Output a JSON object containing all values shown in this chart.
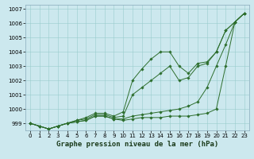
{
  "title": "Graphe pression niveau de la mer (hPa)",
  "bg_color": "#cce8ee",
  "grid_color": "#99cccc",
  "line_color": "#2d6e2d",
  "marker_color": "#2d6e2d",
  "x": [
    0,
    1,
    2,
    3,
    4,
    5,
    6,
    7,
    8,
    9,
    10,
    11,
    12,
    13,
    14,
    15,
    16,
    17,
    18,
    19,
    20,
    21,
    22,
    23
  ],
  "series1": [
    999.0,
    998.8,
    998.6,
    998.8,
    999.0,
    999.1,
    999.2,
    999.5,
    999.5,
    999.3,
    999.2,
    999.3,
    999.4,
    999.4,
    999.4,
    999.5,
    999.5,
    999.5,
    999.6,
    999.7,
    1000.0,
    1003.0,
    1006.1,
    1006.7
  ],
  "series2": [
    999.0,
    998.8,
    998.6,
    998.8,
    999.0,
    999.1,
    999.2,
    999.5,
    999.5,
    999.3,
    999.3,
    999.5,
    999.6,
    999.7,
    999.8,
    999.9,
    1000.0,
    1000.2,
    1000.5,
    1001.5,
    1003.0,
    1004.5,
    1006.1,
    1006.7
  ],
  "series3": [
    999.0,
    998.8,
    998.6,
    998.8,
    999.0,
    999.2,
    999.3,
    999.6,
    999.6,
    999.4,
    999.5,
    1001.0,
    1001.5,
    1002.0,
    1002.5,
    1003.0,
    1002.0,
    1002.2,
    1003.0,
    1003.2,
    1004.0,
    1005.5,
    1006.1,
    1006.7
  ],
  "series4": [
    999.0,
    998.8,
    998.6,
    998.8,
    999.0,
    999.2,
    999.4,
    999.7,
    999.7,
    999.5,
    999.8,
    1002.0,
    1002.8,
    1003.5,
    1004.0,
    1004.0,
    1003.0,
    1002.5,
    1003.2,
    1003.3,
    1004.0,
    1005.5,
    1006.1,
    1006.7
  ],
  "ylim": [
    998.5,
    1007.3
  ],
  "yticks": [
    999,
    1000,
    1001,
    1002,
    1003,
    1004,
    1005,
    1006,
    1007
  ],
  "xtick_labels": [
    "0",
    "1",
    "2",
    "3",
    "4",
    "5",
    "6",
    "7",
    "8",
    "9",
    "10",
    "11",
    "12",
    "13",
    "14",
    "15",
    "16",
    "17",
    "18",
    "19",
    "20",
    "21",
    "22",
    "23"
  ],
  "title_fontsize": 6.5,
  "tick_fontsize": 5.0,
  "figsize": [
    3.2,
    2.0
  ],
  "dpi": 100
}
